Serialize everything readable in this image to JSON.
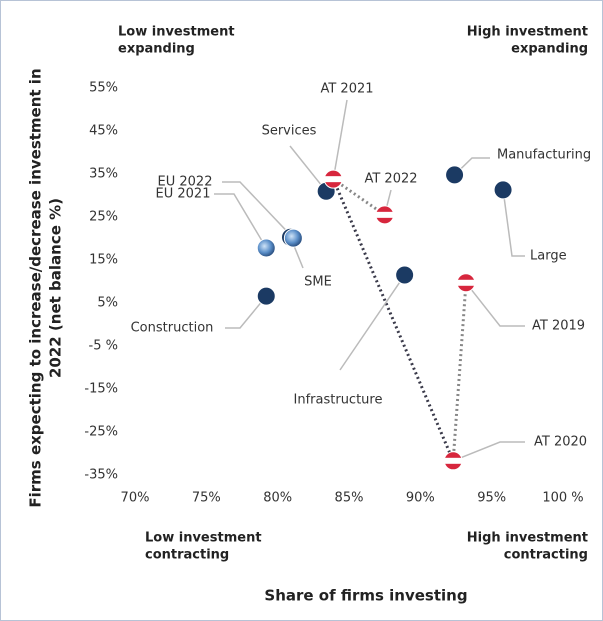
{
  "chart_data": {
    "type": "scatter",
    "x_label": "Share of firms investing",
    "y_label": [
      "Firms expecting to increase/decrease investment in",
      "2022 (net balance %)"
    ],
    "quadrants": [
      [
        "Low investment",
        "expanding"
      ],
      [
        "High investment",
        "expanding"
      ],
      [
        "Low investment",
        "contracting"
      ],
      [
        "High investment",
        "contracting"
      ]
    ],
    "xlim": [
      70,
      100
    ],
    "ylim": [
      -35,
      55
    ],
    "xticks": [
      {
        "value": 70,
        "label": "70%"
      },
      {
        "value": 75,
        "label": "75%"
      },
      {
        "value": 80,
        "label": "80%"
      },
      {
        "value": 85,
        "label": "85%"
      },
      {
        "value": 90,
        "label": "90%"
      },
      {
        "value": 95,
        "label": "95%"
      },
      {
        "value": 100,
        "label": "100 %"
      }
    ],
    "yticks": [
      {
        "value": 55,
        "label": "55%"
      },
      {
        "value": 45,
        "label": "45%"
      },
      {
        "value": 35,
        "label": "35%"
      },
      {
        "value": 25,
        "label": "25%"
      },
      {
        "value": 15,
        "label": "15%"
      },
      {
        "value": 5,
        "label": "5%"
      },
      {
        "value": -5,
        "label": "-5 %"
      },
      {
        "value": -15,
        "label": "-15%"
      },
      {
        "value": -25,
        "label": "-25%"
      },
      {
        "value": -35,
        "label": "-35%"
      }
    ],
    "series": [
      {
        "color": "#1b3a63",
        "marker": "circle",
        "labels": [
          "Services",
          "Manufacturing",
          "Large",
          "Infrastructure",
          "SME",
          "Construction"
        ],
        "x": [
          83.4,
          92.4,
          95.8,
          88.9,
          80.9,
          79.2
        ],
        "values": [
          31.0,
          34.8,
          31.3,
          11.5,
          20.3,
          6.6
        ]
      },
      {
        "color": "#5b8fc9",
        "marker": "gradient",
        "labels": [
          "EU 2022",
          "EU 2021"
        ],
        "x": [
          81.1,
          79.2
        ],
        "values": [
          20.1,
          17.8
        ]
      },
      {
        "color": "#d7263d",
        "marker": "flag",
        "labels": [
          "AT 2021",
          "AT 2022",
          "AT 2019",
          "AT 2020"
        ],
        "x": [
          83.9,
          87.5,
          93.2,
          92.3
        ],
        "values": [
          33.8,
          25.5,
          9.7,
          -31.7
        ]
      }
    ]
  }
}
